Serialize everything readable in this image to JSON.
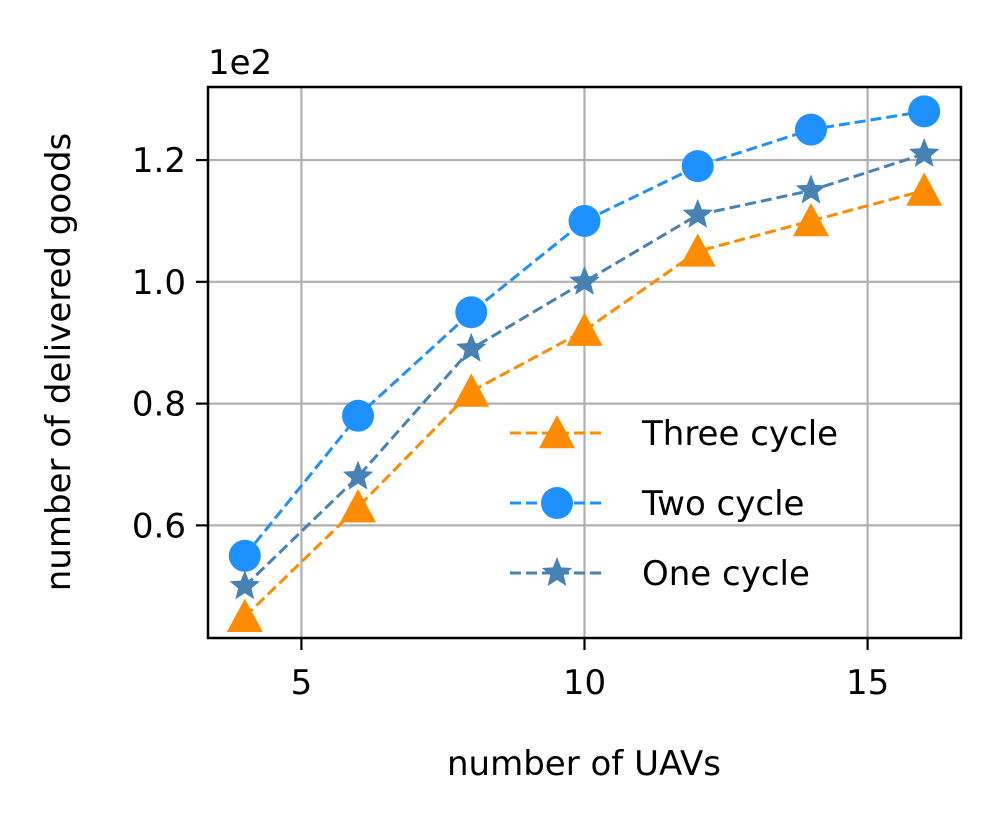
{
  "chart_data": {
    "type": "line",
    "title": "",
    "xlabel": "number of UAVs",
    "ylabel": "number of delivered goods",
    "y_offset_label": "1e2",
    "x": [
      4,
      6,
      8,
      10,
      12,
      14,
      16
    ],
    "xlim": [
      3.35,
      16.65
    ],
    "ylim": [
      0.415,
      1.32
    ],
    "x_ticks": [
      5,
      10,
      15
    ],
    "x_tick_labels": [
      "5",
      "10",
      "15"
    ],
    "y_ticks": [
      0.6,
      0.8,
      1.0,
      1.2
    ],
    "y_tick_labels": [
      "0.6",
      "0.8",
      "1.0",
      "1.2"
    ],
    "grid": true,
    "legend_position": "lower-right",
    "series": [
      {
        "name": "Three cycle",
        "values": [
          0.45,
          0.63,
          0.82,
          0.92,
          1.05,
          1.1,
          1.15
        ],
        "color": "#ff8c00",
        "marker": "triangle",
        "line_style": "dashed"
      },
      {
        "name": "Two cycle",
        "values": [
          0.55,
          0.78,
          0.95,
          1.1,
          1.19,
          1.25,
          1.28
        ],
        "color": "#1e90ff",
        "marker": "circle",
        "line_style": "dashed"
      },
      {
        "name": "One cycle",
        "values": [
          0.5,
          0.68,
          0.89,
          1.0,
          1.11,
          1.15,
          1.21
        ],
        "color": "#4682b4",
        "marker": "star",
        "line_style": "dashed"
      }
    ]
  }
}
